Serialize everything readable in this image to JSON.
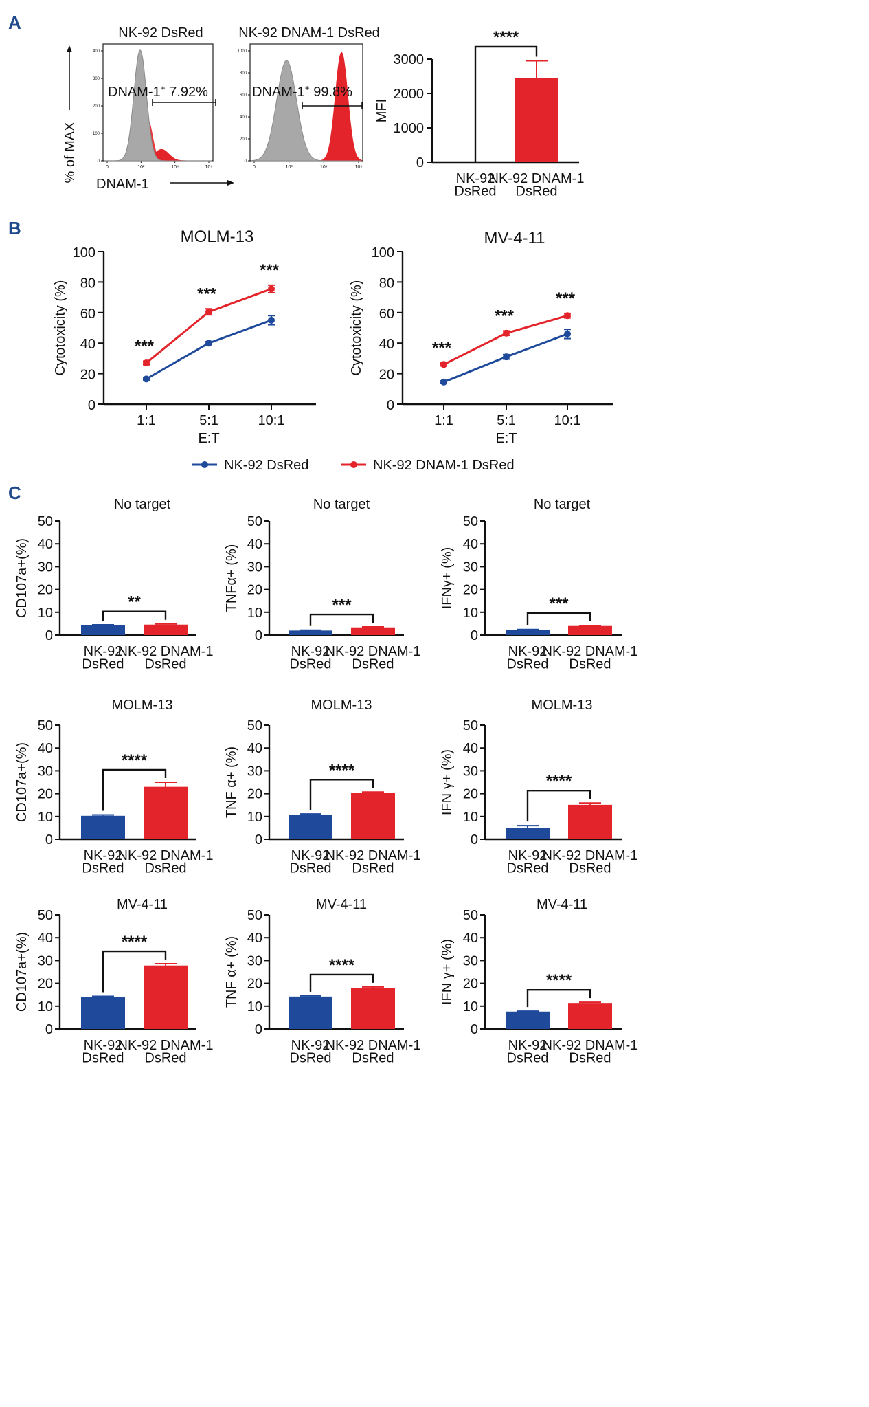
{
  "colors": {
    "blue": "#1f4a9c",
    "red": "#e3242b",
    "gray": "#a8a8a8",
    "panel_letter": "#1f4a8c",
    "axis": "#111111"
  },
  "panels": {
    "A": "A",
    "B": "B",
    "C": "C"
  },
  "panel_a": {
    "histograms": [
      {
        "title": "NK-92 DsRed",
        "gate_label": "DNAM-1",
        "gate_sup": "+",
        "gate_value": " 7.92%",
        "yticks": [
          "0",
          "100",
          "200",
          "300",
          "400"
        ],
        "xticks": [
          "0",
          "10²",
          "10⁴",
          "10⁶"
        ],
        "peaks": {
          "gray_center": 2.0,
          "gray_width": 0.35,
          "gray_height": 0.97,
          "red_center": 3.2,
          "red_width": 0.4,
          "red_height": 0.1,
          "x_range": [
            0,
            6
          ]
        }
      },
      {
        "title": "NK-92 DNAM-1 DsRed",
        "gate_label": "DNAM-1",
        "gate_sup": "+",
        "gate_value": " 99.8%",
        "yticks": [
          "0",
          "200",
          "400",
          "600",
          "800",
          "1000"
        ],
        "xticks": [
          "0",
          "10³",
          "10⁴",
          "10⁵"
        ],
        "peaks": {
          "gray_center": 1.6,
          "gray_width": 0.45,
          "gray_height": 0.88,
          "red_center": 4.1,
          "red_width": 0.28,
          "red_height": 0.95,
          "x_range": [
            0,
            5
          ]
        }
      }
    ],
    "ylabel": "% of MAX",
    "xlabel": "DNAM-1"
  },
  "chart_data": [
    {
      "id": "A-mfi",
      "type": "bar",
      "categories": [
        "NK-92\nDsRed",
        "NK-92 DNAM-1\nDsRed"
      ],
      "values": [
        0,
        2450
      ],
      "errors": [
        0,
        500
      ],
      "ylabel": "MFI",
      "ylim": [
        0,
        3000
      ],
      "yticks": [
        0,
        1000,
        2000,
        3000
      ],
      "significance": "****"
    },
    {
      "id": "B-molm13",
      "type": "line",
      "title": "MOLM-13",
      "x": [
        "1:1",
        "5:1",
        "10:1"
      ],
      "xlabel": "E:T",
      "ylabel": "Cytotoxicity (%)",
      "ylim": [
        0,
        100
      ],
      "yticks": [
        0,
        20,
        40,
        60,
        80,
        100
      ],
      "series": [
        {
          "name": "NK-92 DsRed",
          "values": [
            16.5,
            40,
            55
          ],
          "errors": [
            0.8,
            1,
            3
          ]
        },
        {
          "name": "NK-92 DNAM-1 DsRed",
          "values": [
            27,
            60.5,
            75.5
          ],
          "errors": [
            1.2,
            2,
            2.5
          ]
        }
      ],
      "significance": [
        "***",
        "***",
        "***"
      ]
    },
    {
      "id": "B-mv411",
      "type": "line",
      "title": "MV-4-11",
      "x": [
        "1:1",
        "5:1",
        "10:1"
      ],
      "xlabel": "E:T",
      "ylabel": "Cytotoxicity (%)",
      "ylim": [
        0,
        100
      ],
      "yticks": [
        0,
        20,
        40,
        60,
        80,
        100
      ],
      "series": [
        {
          "name": "NK-92 DsRed",
          "values": [
            14.5,
            31,
            46
          ],
          "errors": [
            0.8,
            1.5,
            3
          ]
        },
        {
          "name": "NK-92 DNAM-1 DsRed",
          "values": [
            26,
            46.5,
            58
          ],
          "errors": [
            1,
            1.5,
            1.5
          ]
        }
      ],
      "significance": [
        "***",
        "***",
        "***"
      ]
    },
    {
      "id": "C-cd107a-none",
      "type": "bar",
      "title": "No target",
      "ylabel": "CD107a+(%)",
      "categories": [
        "NK-92\nDsRed",
        "NK-92 DNAM-1\nDsRed"
      ],
      "values": [
        4.3,
        4.6
      ],
      "errors": [
        0.2,
        0.3
      ],
      "ylim": [
        0,
        50
      ],
      "yticks": [
        0,
        10,
        20,
        30,
        40,
        50
      ],
      "significance": "**"
    },
    {
      "id": "C-tnfa-none",
      "type": "bar",
      "title": "No target",
      "ylabel": "TNFα+ (%)",
      "categories": [
        "NK-92\nDsRed",
        "NK-92 DNAM-1\nDsRed"
      ],
      "values": [
        2.0,
        3.4
      ],
      "errors": [
        0.2,
        0.2
      ],
      "ylim": [
        0,
        50
      ],
      "yticks": [
        0,
        10,
        20,
        30,
        40,
        50
      ],
      "significance": "***"
    },
    {
      "id": "C-ifng-none",
      "type": "bar",
      "title": "No target",
      "ylabel": "IFNγ+ (%)",
      "categories": [
        "NK-92\nDsRed",
        "NK-92 DNAM-1\nDsRed"
      ],
      "values": [
        2.3,
        4.0
      ],
      "errors": [
        0.2,
        0.2
      ],
      "ylim": [
        0,
        50
      ],
      "yticks": [
        0,
        10,
        20,
        30,
        40,
        50
      ],
      "significance": "***"
    },
    {
      "id": "C-cd107a-molm13",
      "type": "bar",
      "title": "MOLM-13",
      "ylabel": "CD107a+(%)",
      "categories": [
        "NK-92\nDsRed",
        "NK-92 DNAM-1\nDsRed"
      ],
      "values": [
        10.3,
        23
      ],
      "errors": [
        0.4,
        2
      ],
      "ylim": [
        0,
        50
      ],
      "yticks": [
        0,
        10,
        20,
        30,
        40,
        50
      ],
      "significance": "****"
    },
    {
      "id": "C-tnfa-molm13",
      "type": "bar",
      "title": "MOLM-13",
      "ylabel": "TNF α+ (%)",
      "categories": [
        "NK-92\nDsRed",
        "NK-92 DNAM-1\nDsRed"
      ],
      "values": [
        10.8,
        20.2
      ],
      "errors": [
        0.3,
        0.5
      ],
      "ylim": [
        0,
        50
      ],
      "yticks": [
        0,
        10,
        20,
        30,
        40,
        50
      ],
      "significance": "****"
    },
    {
      "id": "C-ifng-molm13",
      "type": "bar",
      "title": "MOLM-13",
      "ylabel": "IFN γ+ (%)",
      "categories": [
        "NK-92\nDsRed",
        "NK-92 DNAM-1\nDsRed"
      ],
      "values": [
        5.0,
        15.1
      ],
      "errors": [
        1.0,
        0.8
      ],
      "ylim": [
        0,
        50
      ],
      "yticks": [
        0,
        10,
        20,
        30,
        40,
        50
      ],
      "significance": "****"
    },
    {
      "id": "C-cd107a-mv411",
      "type": "bar",
      "title": "MV-4-11",
      "ylabel": "CD107a+(%)",
      "categories": [
        "NK-92\nDsRed",
        "NK-92 DNAM-1\nDsRed"
      ],
      "values": [
        14.0,
        27.8
      ],
      "errors": [
        0.3,
        0.8
      ],
      "ylim": [
        0,
        50
      ],
      "yticks": [
        0,
        10,
        20,
        30,
        40,
        50
      ],
      "significance": "****"
    },
    {
      "id": "C-tnfa-mv411",
      "type": "bar",
      "title": "MV-4-11",
      "ylabel": "TNF α+ (%)",
      "categories": [
        "NK-92\nDsRed",
        "NK-92 DNAM-1\nDsRed"
      ],
      "values": [
        14.2,
        18.0
      ],
      "errors": [
        0.3,
        0.4
      ],
      "ylim": [
        0,
        50
      ],
      "yticks": [
        0,
        10,
        20,
        30,
        40,
        50
      ],
      "significance": "****"
    },
    {
      "id": "C-ifng-mv411",
      "type": "bar",
      "title": "MV-4-11",
      "ylabel": "IFN γ+ (%)",
      "categories": [
        "NK-92\nDsRed",
        "NK-92 DNAM-1\nDsRed"
      ],
      "values": [
        7.6,
        11.4
      ],
      "errors": [
        0.2,
        0.3
      ],
      "ylim": [
        0,
        50
      ],
      "yticks": [
        0,
        10,
        20,
        30,
        40,
        50
      ],
      "significance": "****"
    }
  ],
  "legend": [
    {
      "label": "NK-92 DsRed",
      "color": "#1f4a9c"
    },
    {
      "label": "NK-92 DNAM-1 DsRed",
      "color": "#e3242b"
    }
  ]
}
